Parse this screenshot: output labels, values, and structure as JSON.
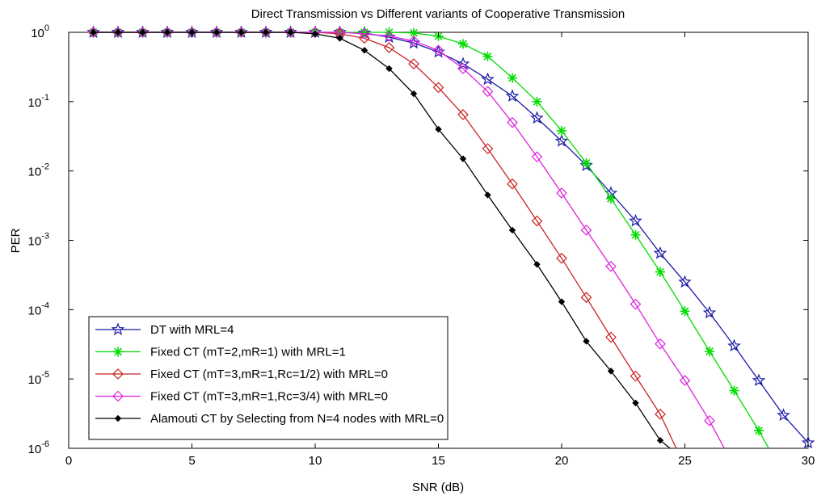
{
  "chart_data": {
    "type": "line",
    "title": "Direct Transmission vs Different variants of Cooperative Transmission",
    "xlabel": "SNR (dB)",
    "ylabel": "PER",
    "xlim": [
      0,
      30
    ],
    "ylim": [
      1e-06,
      1
    ],
    "yscale": "log",
    "grid": false,
    "legend_position": "bottom-left",
    "x_ticks": [
      0,
      5,
      10,
      15,
      20,
      25,
      30
    ],
    "x_tick_labels": [
      "0",
      "5",
      "10",
      "15",
      "20",
      "25",
      "30"
    ],
    "y_ticks": [
      1,
      0.1,
      0.01,
      0.001,
      0.0001,
      1e-05,
      1e-06
    ],
    "y_tick_labels": [
      {
        "base": "10",
        "exp": "0"
      },
      {
        "base": "10",
        "exp": "-1"
      },
      {
        "base": "10",
        "exp": "-2"
      },
      {
        "base": "10",
        "exp": "-3"
      },
      {
        "base": "10",
        "exp": "-4"
      },
      {
        "base": "10",
        "exp": "-5"
      },
      {
        "base": "10",
        "exp": "-6"
      }
    ],
    "series": [
      {
        "name": "DT with MRL=4",
        "color": "#1a1aa6",
        "marker": "star",
        "x": [
          1,
          2,
          3,
          4,
          5,
          6,
          7,
          8,
          9,
          10,
          11,
          12,
          13,
          14,
          15,
          16,
          17,
          18,
          19,
          20,
          21,
          22,
          23,
          24,
          25,
          26,
          27,
          28,
          29,
          30
        ],
        "y": [
          1,
          1,
          1,
          1,
          1,
          1,
          1,
          1,
          1,
          1,
          1,
          0.98,
          0.85,
          0.7,
          0.52,
          0.35,
          0.21,
          0.12,
          0.058,
          0.027,
          0.012,
          0.0048,
          0.0019,
          0.00065,
          0.00025,
          9e-05,
          3e-05,
          9.5e-06,
          3e-06,
          1.2e-06
        ]
      },
      {
        "name": "Fixed CT (mT=2,mR=1) with MRL=1",
        "color": "#00dd00",
        "marker": "asterisk",
        "x": [
          1,
          2,
          3,
          4,
          5,
          6,
          7,
          8,
          9,
          10,
          11,
          12,
          13,
          14,
          15,
          16,
          17,
          18,
          19,
          20,
          21,
          22,
          23,
          24,
          25,
          26,
          27,
          28
        ],
        "y": [
          1,
          1,
          1,
          1,
          1,
          1,
          1,
          1,
          1,
          1,
          1,
          1,
          1,
          0.98,
          0.88,
          0.68,
          0.45,
          0.22,
          0.1,
          0.038,
          0.013,
          0.004,
          0.0012,
          0.00035,
          9.5e-05,
          2.5e-05,
          6.8e-06,
          1.8e-06
        ],
        "x_end": 28.4,
        "y_end": 1e-06
      },
      {
        "name": "Fixed CT (mT=3,mR=1,Rc=1/2) with MRL=0",
        "color": "#cc2222",
        "marker": "diamond",
        "x": [
          1,
          2,
          3,
          4,
          5,
          6,
          7,
          8,
          9,
          10,
          11,
          12,
          13,
          14,
          15,
          16,
          17,
          18,
          19,
          20,
          21,
          22,
          23,
          24
        ],
        "y": [
          1,
          1,
          1,
          1,
          1,
          1,
          1,
          1,
          1,
          1,
          0.95,
          0.82,
          0.6,
          0.35,
          0.16,
          0.065,
          0.021,
          0.0065,
          0.0019,
          0.00055,
          0.00015,
          4e-05,
          1.1e-05,
          3.1e-06
        ],
        "x_end": 24.65,
        "y_end": 1e-06
      },
      {
        "name": "Fixed CT (mT=3,mR=1,Rc=3/4) with MRL=0",
        "color": "#dd22dd",
        "marker": "diamond",
        "x": [
          1,
          2,
          3,
          4,
          5,
          6,
          7,
          8,
          9,
          10,
          11,
          12,
          13,
          14,
          15,
          16,
          17,
          18,
          19,
          20,
          21,
          22,
          23,
          24,
          25,
          26
        ],
        "y": [
          1,
          1,
          1,
          1,
          1,
          1,
          1,
          1,
          1,
          1,
          1,
          0.95,
          0.88,
          0.75,
          0.55,
          0.3,
          0.14,
          0.05,
          0.016,
          0.0048,
          0.0014,
          0.00042,
          0.00012,
          3.2e-05,
          9.5e-06,
          2.5e-06
        ],
        "x_end": 26.6,
        "y_end": 1e-06
      },
      {
        "name": "Alamouti CT by Selecting from N=4 nodes with MRL=0",
        "color": "#000000",
        "marker": "dot",
        "x": [
          1,
          2,
          3,
          4,
          5,
          6,
          7,
          8,
          9,
          10,
          11,
          12,
          13,
          14,
          15,
          16,
          17,
          18,
          19,
          20,
          21,
          22,
          23,
          24
        ],
        "y": [
          1,
          1,
          1,
          1,
          1,
          1,
          1,
          1,
          1,
          0.95,
          0.82,
          0.55,
          0.3,
          0.13,
          0.04,
          0.015,
          0.0045,
          0.0014,
          0.00045,
          0.00013,
          3.5e-05,
          1.3e-05,
          4.5e-06,
          1.3e-06
        ],
        "x_end": 24.4,
        "y_end": 1e-06
      }
    ]
  }
}
